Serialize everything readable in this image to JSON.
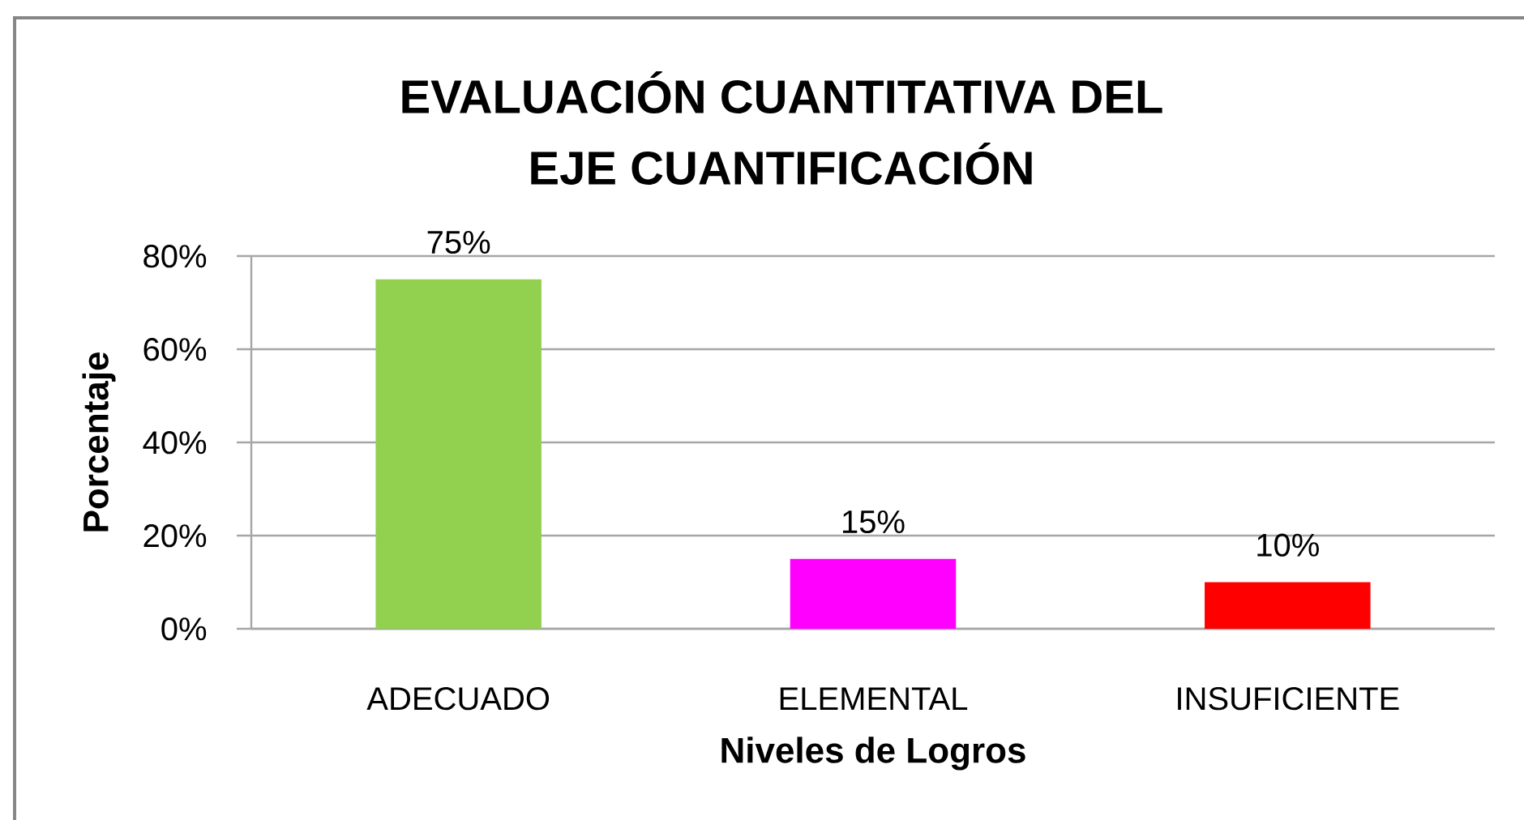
{
  "chart_data": {
    "type": "bar",
    "title": "EVALUACIÓN CUANTITATIVA DEL EJE CUANTIFICACIÓN",
    "xlabel": "Niveles de Logros",
    "ylabel": "Porcentaje",
    "categories": [
      "ADECUADO",
      "ELEMENTAL",
      "INSUFICIENTE"
    ],
    "values": [
      75,
      15,
      10
    ],
    "colors": [
      "#92d050",
      "#ff00ff",
      "#ff0000"
    ],
    "value_labels": [
      "75%",
      "15%",
      "10%"
    ],
    "ylim": [
      0,
      80
    ],
    "yticks": [
      {
        "value": 0,
        "label": "0%"
      },
      {
        "value": 20,
        "label": "20%"
      },
      {
        "value": 40,
        "label": "40%"
      },
      {
        "value": 60,
        "label": "60%"
      },
      {
        "value": 80,
        "label": "80%"
      }
    ],
    "grid": "y"
  }
}
